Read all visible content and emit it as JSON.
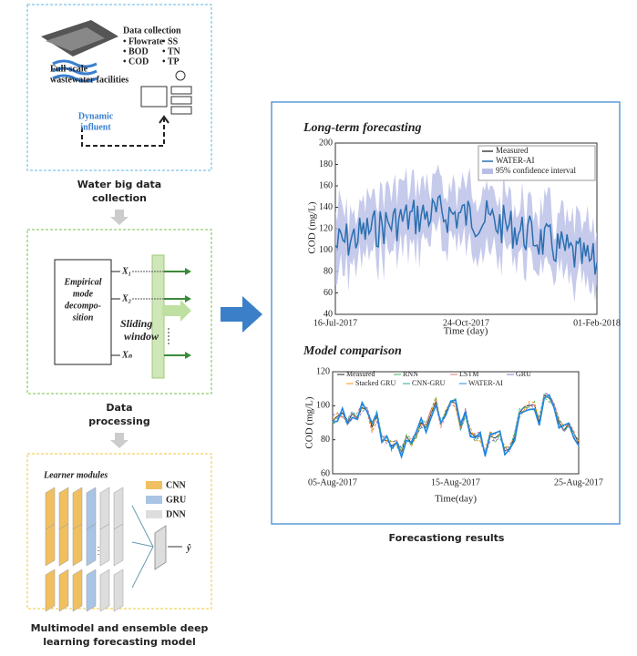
{
  "panels": [
    {
      "caption": [
        "Water big data",
        "collection"
      ]
    },
    {
      "caption": [
        "Data",
        "processing"
      ]
    },
    {
      "caption": [
        "Multimodel and ensemble deep",
        "learning forecasting model"
      ]
    },
    {
      "caption": [
        "Forecastiong results"
      ]
    }
  ],
  "collection": {
    "title": "Data collection",
    "items": [
      "• Flowrate",
      "• SS",
      "• BOD",
      "• TN",
      "• COD",
      "• TP"
    ],
    "facility": [
      "Full-scale",
      "wastewater facilities"
    ],
    "influent": [
      "Dynamic",
      "influent"
    ]
  },
  "processing": {
    "method": [
      "Empirical",
      "mode",
      "decompo-",
      "sition"
    ],
    "components": [
      "X₁",
      "X₂",
      "Xₙ"
    ],
    "window": [
      "Sliding",
      "window"
    ]
  },
  "learning": {
    "title": "Learner modules",
    "legend": [
      "CNN",
      "GRU",
      "DNN"
    ],
    "output": "ŷ"
  },
  "long_term": {
    "title": "Long-term forecasting",
    "y_label": "COD (mg/L)",
    "x_label": "Time (day)",
    "yticks": [
      "40",
      "60",
      "80",
      "100",
      "120",
      "140",
      "160",
      "180",
      "200"
    ],
    "xticks": [
      "16-Jul-2017",
      "24-Oct-2017",
      "01-Feb-2018"
    ],
    "legend": [
      "Measured",
      "WATER-AI",
      "95% confidence interval"
    ]
  },
  "comparison": {
    "title": "Model comparison",
    "y_label": "COD (mg/L)",
    "x_label": "Time(day)",
    "yticks": [
      "60",
      "80",
      "100",
      "120"
    ],
    "xticks": [
      "05-Aug-2017",
      "15-Aug-2017",
      "25-Aug-2017"
    ],
    "legend": [
      "Measured",
      "RNN",
      "LSTM",
      "GRU",
      "Stacked GRU",
      "CNN-GRU",
      "WATER-AI"
    ]
  }
}
